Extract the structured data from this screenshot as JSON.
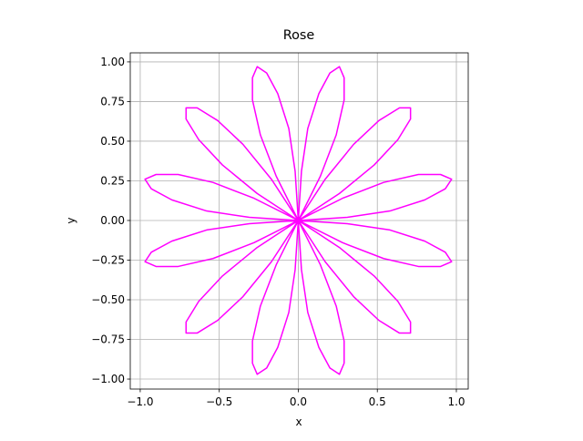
{
  "chart_data": {
    "type": "line",
    "title": "Rose",
    "x_label": "x",
    "y_label": "y",
    "color": "#ff00ff",
    "grid": true,
    "x": [
      0,
      0.31,
      0.58,
      0.8,
      0.93,
      0.97,
      0.9,
      0.76,
      0.54,
      0.28,
      0,
      -0.26,
      -0.48,
      -0.63,
      -0.71,
      -0.71,
      -0.64,
      -0.51,
      -0.35,
      -0.17,
      0,
      0.14,
      0.24,
      0.29,
      0.29,
      0.26,
      0.2,
      0.13,
      0.06,
      0.02,
      0,
      0.02,
      0.06,
      0.13,
      0.2,
      0.26,
      0.29,
      0.29,
      0.24,
      0.14,
      0,
      -0.17,
      -0.35,
      -0.51,
      -0.64,
      -0.71,
      -0.71,
      -0.63,
      -0.48,
      -0.26,
      0,
      0.28,
      0.54,
      0.76,
      0.9,
      0.97,
      0.93,
      0.8,
      0.58,
      0.31,
      0,
      -0.31,
      -0.58,
      -0.8,
      -0.93,
      -0.97,
      -0.9,
      -0.76,
      -0.54,
      -0.28,
      0,
      0.26,
      0.48,
      0.63,
      0.71,
      0.71,
      0.64,
      0.51,
      0.35,
      0.17,
      0,
      -0.14,
      -0.24,
      -0.29,
      -0.29,
      -0.26,
      -0.2,
      -0.13,
      -0.06,
      -0.02,
      0,
      -0.02,
      -0.06,
      -0.13,
      -0.2,
      -0.26,
      -0.29,
      -0.29,
      -0.24,
      -0.14,
      0,
      0.17,
      0.35,
      0.51,
      0.64,
      0.71,
      0.71,
      0.63,
      0.48,
      0.26,
      0,
      -0.28,
      -0.54,
      -0.76,
      -0.9,
      -0.97,
      -0.93,
      -0.8,
      -0.58,
      -0.31,
      0
    ],
    "y": [
      0,
      0.02,
      0.06,
      0.13,
      0.2,
      0.26,
      0.29,
      0.29,
      0.24,
      0.14,
      0,
      -0.17,
      -0.35,
      -0.51,
      -0.64,
      -0.71,
      -0.71,
      -0.63,
      -0.48,
      -0.26,
      0,
      0.28,
      0.54,
      0.76,
      0.9,
      0.97,
      0.93,
      0.8,
      0.58,
      0.31,
      0,
      -0.31,
      -0.58,
      -0.8,
      -0.93,
      -0.97,
      -0.9,
      -0.76,
      -0.54,
      -0.28,
      0,
      0.26,
      0.48,
      0.63,
      0.71,
      0.71,
      0.64,
      0.51,
      0.35,
      0.17,
      0,
      -0.14,
      -0.24,
      -0.29,
      -0.29,
      -0.26,
      -0.2,
      -0.13,
      -0.06,
      -0.02,
      0,
      -0.02,
      -0.06,
      -0.13,
      -0.2,
      -0.26,
      -0.29,
      -0.29,
      -0.24,
      -0.14,
      0,
      0.17,
      0.35,
      0.51,
      0.64,
      0.71,
      0.71,
      0.63,
      0.48,
      0.26,
      0,
      -0.28,
      -0.54,
      -0.76,
      -0.9,
      -0.97,
      -0.93,
      -0.8,
      -0.58,
      -0.31,
      0,
      0.31,
      0.58,
      0.8,
      0.93,
      0.97,
      0.9,
      0.76,
      0.54,
      0.28,
      0,
      -0.26,
      -0.48,
      -0.63,
      -0.71,
      -0.71,
      -0.64,
      -0.51,
      -0.35,
      -0.17,
      0,
      0.14,
      0.24,
      0.29,
      0.29,
      0.26,
      0.2,
      0.13,
      0.06,
      0.02,
      0
    ],
    "xlim": [
      -1.063,
      1.075
    ],
    "ylim": [
      -1.063,
      1.057
    ],
    "xticks": [
      {
        "value": -1.0,
        "label": "−1.0"
      },
      {
        "value": -0.5,
        "label": "−0.5"
      },
      {
        "value": 0,
        "label": "0.0"
      },
      {
        "value": 0.5,
        "label": "0.5"
      },
      {
        "value": 1.0,
        "label": "1.0"
      }
    ],
    "yticks": [
      {
        "value": -1.0,
        "label": "−1.00"
      },
      {
        "value": -0.75,
        "label": "−0.75"
      },
      {
        "value": -0.5,
        "label": "−0.50"
      },
      {
        "value": -0.25,
        "label": "−0.25"
      },
      {
        "value": 0,
        "label": "0.00"
      },
      {
        "value": 0.25,
        "label": "0.25"
      },
      {
        "value": 0.5,
        "label": "0.50"
      },
      {
        "value": 0.75,
        "label": "0.75"
      },
      {
        "value": 1.0,
        "label": "1.00"
      }
    ]
  }
}
